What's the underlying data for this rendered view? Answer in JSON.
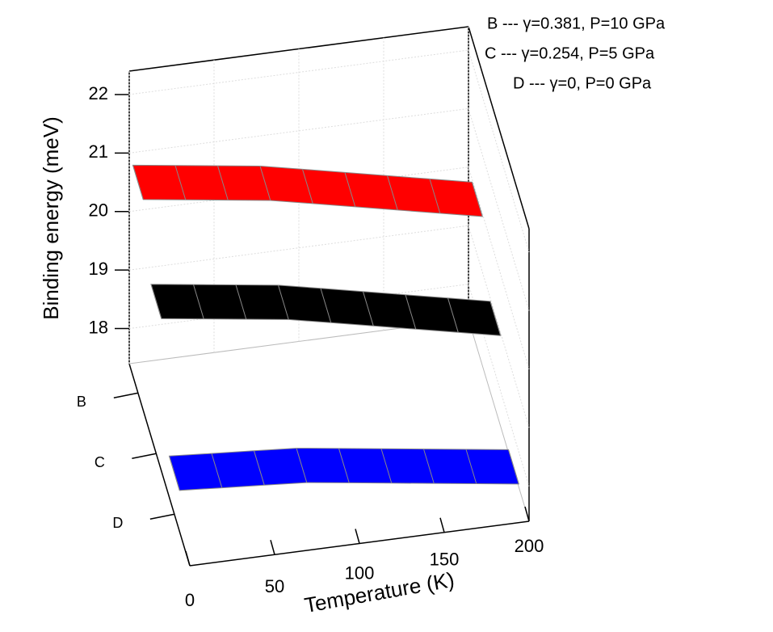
{
  "chart_data": {
    "type": "ribbon3d",
    "xlabel": "Temperature (K)",
    "ylabel": "Binding energy (meV)",
    "x": [
      0,
      25,
      50,
      75,
      100,
      125,
      150,
      175,
      200
    ],
    "xlim": [
      0,
      200
    ],
    "xticks": [
      0,
      50,
      100,
      150,
      200
    ],
    "ylim": [
      17.4,
      22.4
    ],
    "yticks": [
      18,
      19,
      20,
      21,
      22
    ],
    "grid": true,
    "legend": [
      "B --- γ=0.381, P=10 GPa",
      "C --- γ=0.254, P=5 GPa",
      "D --- γ=0, P=0 GPa"
    ],
    "series": [
      {
        "name": "B",
        "color": "#ff0000",
        "values": [
          21.0,
          20.9,
          20.8,
          20.7,
          20.55,
          20.4,
          20.25,
          20.1,
          19.95
        ]
      },
      {
        "name": "C",
        "color": "#000000",
        "values": [
          20.0,
          19.9,
          19.8,
          19.7,
          19.55,
          19.4,
          19.25,
          19.1,
          18.95
        ]
      },
      {
        "name": "D",
        "color": "#0000ff",
        "values": [
          18.1,
          18.05,
          18.0,
          17.95,
          17.85,
          17.75,
          17.65,
          17.55,
          17.45
        ]
      }
    ]
  }
}
